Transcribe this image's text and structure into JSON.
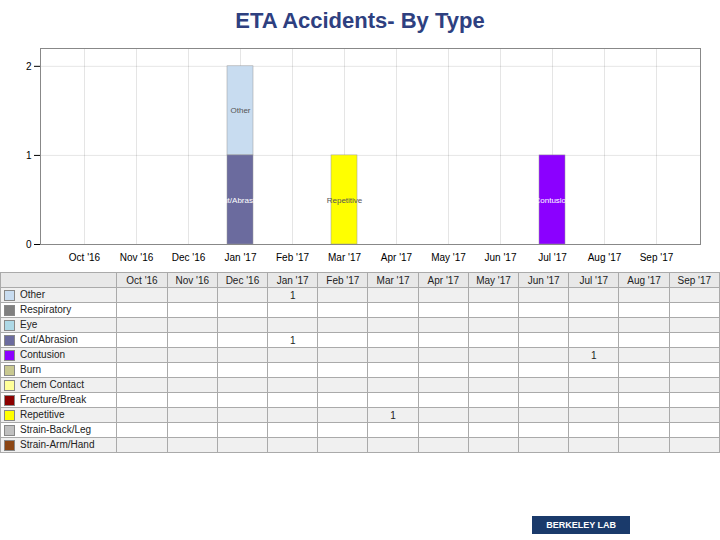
{
  "chart_data": {
    "type": "bar",
    "title": "ETA Accidents- By Type",
    "categories": [
      "Oct '16",
      "Nov '16",
      "Dec '16",
      "Jan '17",
      "Feb '17",
      "Mar '17",
      "Apr '17",
      "May '17",
      "Jun '17",
      "Jul '17",
      "Aug '17",
      "Sep '17"
    ],
    "series": [
      {
        "name": "Other",
        "color": "#C8DCF0",
        "values": [
          null,
          null,
          null,
          1,
          null,
          null,
          null,
          null,
          null,
          null,
          null,
          null
        ]
      },
      {
        "name": "Respiratory",
        "color": "#808080",
        "values": [
          null,
          null,
          null,
          null,
          null,
          null,
          null,
          null,
          null,
          null,
          null,
          null
        ]
      },
      {
        "name": "Eye",
        "color": "#ADD8E6",
        "values": [
          null,
          null,
          null,
          null,
          null,
          null,
          null,
          null,
          null,
          null,
          null,
          null
        ]
      },
      {
        "name": "Cut/Abrasion",
        "color": "#6B6B9E",
        "values": [
          null,
          null,
          null,
          1,
          null,
          null,
          null,
          null,
          null,
          null,
          null,
          null
        ]
      },
      {
        "name": "Contusion",
        "color": "#8B00FF",
        "values": [
          null,
          null,
          null,
          null,
          null,
          null,
          null,
          null,
          null,
          1,
          null,
          null
        ]
      },
      {
        "name": "Burn",
        "color": "#C8C890",
        "values": [
          null,
          null,
          null,
          null,
          null,
          null,
          null,
          null,
          null,
          null,
          null,
          null
        ]
      },
      {
        "name": "Chem Contact",
        "color": "#FFFF99",
        "values": [
          null,
          null,
          null,
          null,
          null,
          null,
          null,
          null,
          null,
          null,
          null,
          null
        ]
      },
      {
        "name": "Fracture/Break",
        "color": "#8B0000",
        "values": [
          null,
          null,
          null,
          null,
          null,
          null,
          null,
          null,
          null,
          null,
          null,
          null
        ]
      },
      {
        "name": "Repetitive",
        "color": "#FFFF00",
        "values": [
          null,
          null,
          null,
          null,
          null,
          1,
          null,
          null,
          null,
          null,
          null,
          null
        ]
      },
      {
        "name": "Strain-Back/Leg",
        "color": "#C0C0C0",
        "values": [
          null,
          null,
          null,
          null,
          null,
          null,
          null,
          null,
          null,
          null,
          null,
          null
        ]
      },
      {
        "name": "Strain-Arm/Hand",
        "color": "#8B4513",
        "values": [
          null,
          null,
          null,
          null,
          null,
          null,
          null,
          null,
          null,
          null,
          null,
          null
        ]
      }
    ],
    "stacked": true,
    "ylim": [
      0,
      2.2
    ],
    "yticks": [
      0,
      1,
      2
    ],
    "grid": true,
    "annotations": [
      "BERKELEY LAB"
    ]
  }
}
